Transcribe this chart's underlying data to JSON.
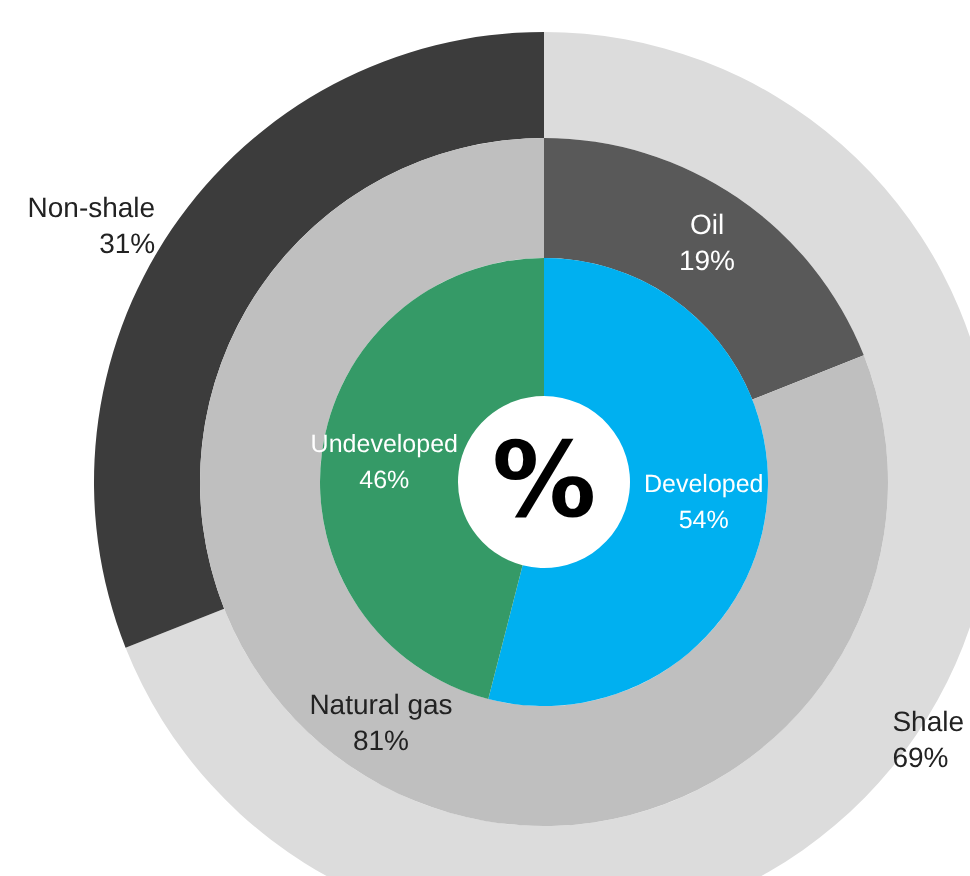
{
  "chart_data": [
    {
      "type": "donut",
      "categories": [
        "Shale",
        "Non-shale"
      ],
      "values": [
        69,
        31
      ],
      "colors": [
        "#dcdcdc",
        "#3c3c3c"
      ],
      "value_labels": [
        "69%",
        "31%"
      ]
    },
    {
      "type": "donut",
      "categories": [
        "Oil",
        "Natural gas"
      ],
      "values": [
        19,
        81
      ],
      "colors": [
        "#595959",
        "#bfbfbf"
      ],
      "value_labels": [
        "19%",
        "81%"
      ]
    },
    {
      "type": "donut",
      "categories": [
        "Developed",
        "Undeveloped"
      ],
      "values": [
        54,
        46
      ],
      "colors": [
        "#00b0f0",
        "#359a67"
      ],
      "value_labels": [
        "54%",
        "46%"
      ],
      "annotations": [
        "%"
      ]
    }
  ]
}
